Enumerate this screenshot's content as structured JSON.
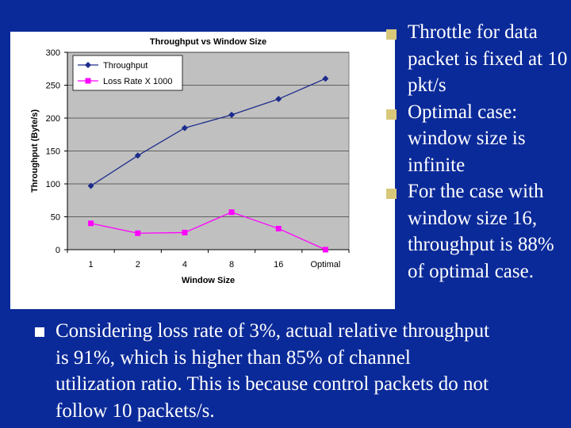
{
  "chart_data": {
    "type": "line",
    "title": "Throughput vs Window Size",
    "xlabel": "Window Size",
    "ylabel": "Throughput (Byte/s)",
    "categories": [
      "1",
      "2",
      "4",
      "8",
      "16",
      "Optimal"
    ],
    "ylim": [
      0,
      300
    ],
    "yticks": [
      0,
      50,
      100,
      150,
      200,
      250,
      300
    ],
    "grid": "horizontal",
    "legend_position": "top-left",
    "series": [
      {
        "name": "Throughput",
        "values": [
          97,
          143,
          185,
          205,
          229,
          260
        ],
        "color": "#1c2c8c",
        "marker": "diamond"
      },
      {
        "name": "Loss Rate X 1000",
        "values": [
          40,
          25,
          26,
          57,
          32,
          0
        ],
        "color": "#ff00ff",
        "marker": "square"
      }
    ],
    "plot_background": "#c0c0c0"
  },
  "bullets": [
    "Throttle for data packet is fixed at 10 pkt/s",
    "Optimal case: window size is infinite",
    "For the case with window size 16, throughput is 88% of optimal case."
  ],
  "bottom_bullet": "Considering loss rate of 3%, actual relative throughput is 91%, which is higher than 85% of channel utilization ratio. This is because control packets do not follow 10 packets/s.",
  "colors": {
    "slide_background": "#0b2a99",
    "bullet_marker": "#d7c87a",
    "text": "#ffffff"
  }
}
